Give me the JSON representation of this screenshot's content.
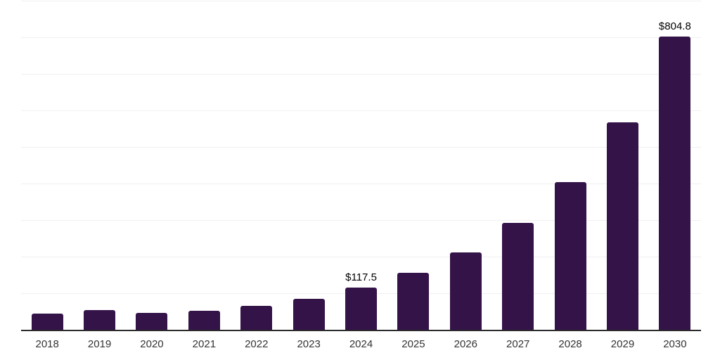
{
  "chart_data": {
    "type": "bar",
    "title": "",
    "xlabel": "",
    "ylabel": "",
    "categories": [
      "2018",
      "2019",
      "2020",
      "2021",
      "2022",
      "2023",
      "2024",
      "2025",
      "2026",
      "2027",
      "2028",
      "2029",
      "2030"
    ],
    "values": [
      46,
      55,
      49,
      54,
      67,
      86,
      117.5,
      158,
      213,
      294,
      406,
      569,
      804.8
    ],
    "data_labels": {
      "2024": "$117.5",
      "2030": "$804.8"
    },
    "ylim": [
      0,
      900
    ],
    "gridline_interval": 100,
    "grid_on": true,
    "legend_position": "none",
    "colors": {
      "bar": "#341349",
      "gridline": "#f0f0f0",
      "axis_line": "#2b2b2b",
      "tick_label": "#333333",
      "data_label": "#000000",
      "background": "#ffffff"
    }
  }
}
